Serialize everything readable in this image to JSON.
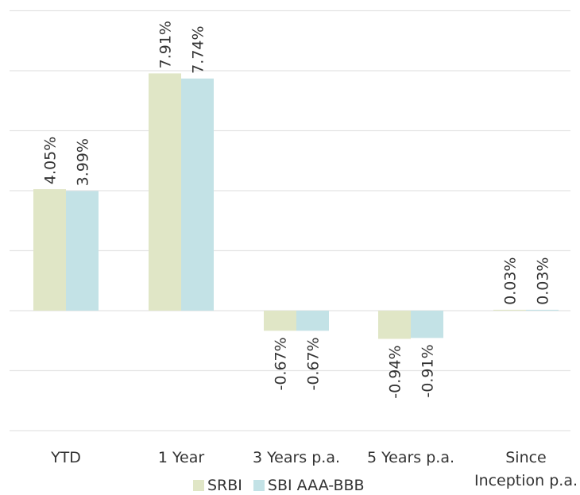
{
  "chart_data": {
    "type": "bar",
    "title": "",
    "xlabel": "",
    "ylabel": "",
    "categories": [
      [
        "YTD"
      ],
      [
        "1 Year"
      ],
      [
        "3 Years p.a."
      ],
      [
        "5 Years p.a."
      ],
      [
        "Since",
        "Inception p.a."
      ]
    ],
    "series": [
      {
        "name": "SRBI",
        "color": "#e0e6c6",
        "values": [
          4.05,
          7.91,
          -0.67,
          -0.94,
          0.03
        ],
        "labels": [
          "4.05%",
          "7.91%",
          "-0.67%",
          "-0.94%",
          "0.03%"
        ]
      },
      {
        "name": "SBI AAA-BBB",
        "color": "#c3e2e6",
        "values": [
          3.99,
          7.74,
          -0.67,
          -0.91,
          0.03
        ],
        "labels": [
          "3.99%",
          "7.74%",
          "-0.67%",
          "-0.91%",
          "0.03%"
        ]
      }
    ],
    "ylim": [
      -4,
      10
    ],
    "gridlines": [
      -4,
      -2,
      0,
      2,
      4,
      6,
      8,
      10
    ],
    "grid": true,
    "legend_position": "bottom"
  }
}
